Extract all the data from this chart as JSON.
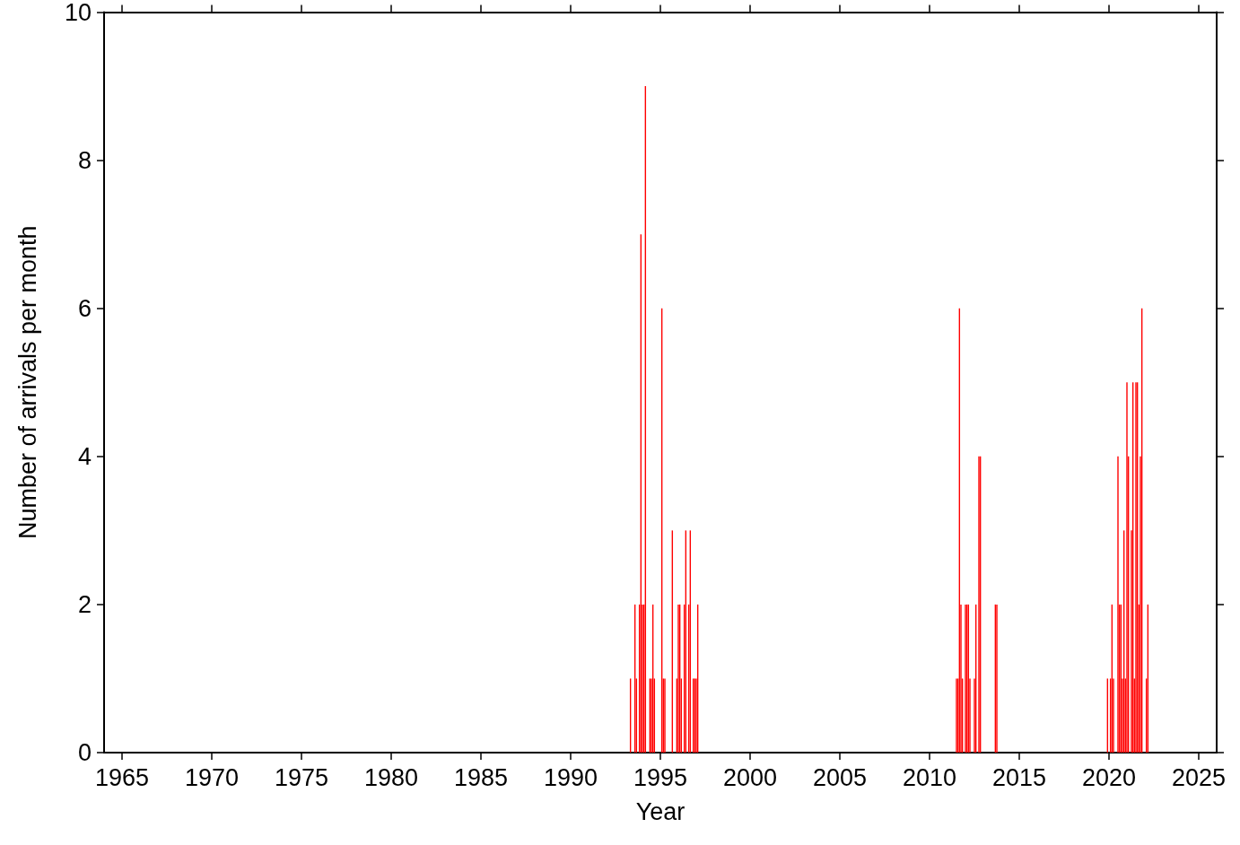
{
  "chart_data": {
    "type": "bar",
    "xlabel": "Year",
    "ylabel": "Number of arrivals per month",
    "x": [
      "1993-05",
      "1993-08",
      "1993-09",
      "1993-11",
      "1993-12",
      "1994-01",
      "1994-02",
      "1994-03",
      "1994-06",
      "1994-07",
      "1994-08",
      "1994-09",
      "1995-02",
      "1995-03",
      "1995-04",
      "1995-09",
      "1995-12",
      "1996-01",
      "1996-02",
      "1996-03",
      "1996-05",
      "1996-06",
      "1996-08",
      "1996-09",
      "1996-11",
      "1996-12",
      "1997-01",
      "1997-02",
      "2011-07",
      "2011-08",
      "2011-09",
      "2011-10",
      "2011-11",
      "2012-01",
      "2012-02",
      "2012-03",
      "2012-04",
      "2012-07",
      "2012-08",
      "2012-10",
      "2012-11",
      "2013-09",
      "2013-10",
      "2019-12",
      "2020-02",
      "2020-03",
      "2020-04",
      "2020-07",
      "2020-08",
      "2020-09",
      "2020-10",
      "2020-11",
      "2020-12",
      "2021-01",
      "2021-02",
      "2021-04",
      "2021-05",
      "2021-06",
      "2021-07",
      "2021-08",
      "2021-09",
      "2021-10",
      "2021-11",
      "2022-02",
      "2022-03"
    ],
    "values": [
      1,
      2,
      1,
      2,
      7,
      2,
      2,
      9,
      1,
      1,
      2,
      1,
      6,
      1,
      1,
      3,
      1,
      2,
      2,
      1,
      2,
      3,
      2,
      3,
      1,
      1,
      1,
      2,
      1,
      1,
      6,
      2,
      1,
      2,
      2,
      2,
      1,
      1,
      2,
      4,
      4,
      2,
      2,
      1,
      1,
      2,
      1,
      4,
      2,
      2,
      1,
      3,
      1,
      5,
      4,
      3,
      5,
      1,
      5,
      5,
      2,
      4,
      6,
      1,
      2
    ],
    "color": "#ff0000",
    "xlim": [
      "1964-01-01",
      "2026-01-01"
    ],
    "xticks": [
      "1965",
      "1970",
      "1975",
      "1980",
      "1985",
      "1990",
      "1995",
      "2000",
      "2005",
      "2010",
      "2015",
      "2020",
      "2025"
    ],
    "ylim": [
      0,
      10
    ],
    "yticks": [
      0,
      2,
      4,
      6,
      8,
      10
    ],
    "grid": false
  }
}
